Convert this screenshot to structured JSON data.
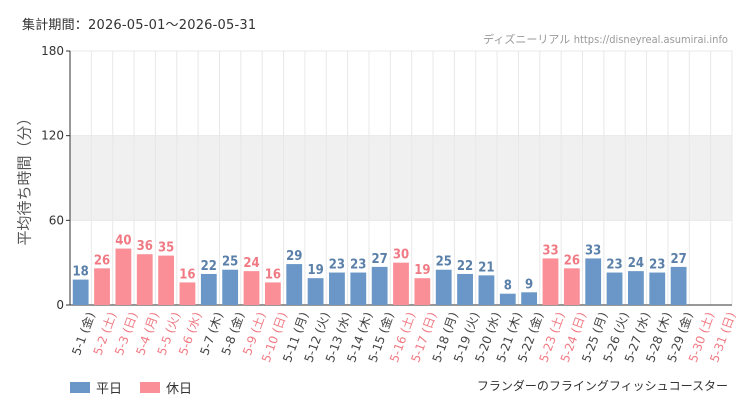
{
  "header": {
    "period": "集計期間：2026-05-01～2026-05-31",
    "credit_name": "ディズニーリアル",
    "credit_url": "https://disneyreal.asumirai.info"
  },
  "colors": {
    "weekday": "#6a97c7",
    "holiday": "#fb8f98",
    "holiday_text": "#f07a84",
    "weekday_text": "#5a7fa8",
    "tick_text_weekday": "#444444",
    "band": "#f0f0f0",
    "grid": "#e8e8e8"
  },
  "legend": {
    "weekday_label": "平日",
    "holiday_label": "休日"
  },
  "footer": {
    "attraction": "フランダーのフライングフィッシュコースター"
  },
  "chart_data": {
    "type": "bar",
    "ylabel": "平均待ち時間（分）",
    "ylim": [
      0,
      180
    ],
    "yticks": [
      0,
      60,
      120,
      180
    ],
    "shaded_band": [
      60,
      120
    ],
    "grid": true,
    "legend_position": "bottom-left",
    "categories": [
      "5-1 (金)",
      "5-2 (土)",
      "5-3 (日)",
      "5-4 (月)",
      "5-5 (火)",
      "5-6 (水)",
      "5-7 (木)",
      "5-8 (金)",
      "5-9 (土)",
      "5-10 (日)",
      "5-11 (月)",
      "5-12 (火)",
      "5-13 (水)",
      "5-14 (木)",
      "5-15 (金)",
      "5-16 (土)",
      "5-17 (日)",
      "5-18 (月)",
      "5-19 (火)",
      "5-20 (水)",
      "5-21 (木)",
      "5-22 (金)",
      "5-23 (土)",
      "5-24 (日)",
      "5-25 (月)",
      "5-26 (火)",
      "5-27 (水)",
      "5-28 (木)",
      "5-29 (金)",
      "5-30 (土)",
      "5-31 (日)"
    ],
    "values": [
      18,
      26,
      40,
      36,
      35,
      16,
      22,
      25,
      24,
      16,
      29,
      19,
      23,
      23,
      27,
      30,
      19,
      25,
      22,
      21,
      8,
      9,
      33,
      26,
      33,
      23,
      24,
      23,
      27,
      null,
      null
    ],
    "holiday": [
      false,
      true,
      true,
      true,
      true,
      true,
      false,
      false,
      true,
      true,
      false,
      false,
      false,
      false,
      false,
      true,
      true,
      false,
      false,
      false,
      false,
      false,
      true,
      true,
      false,
      false,
      false,
      false,
      false,
      true,
      true
    ]
  }
}
